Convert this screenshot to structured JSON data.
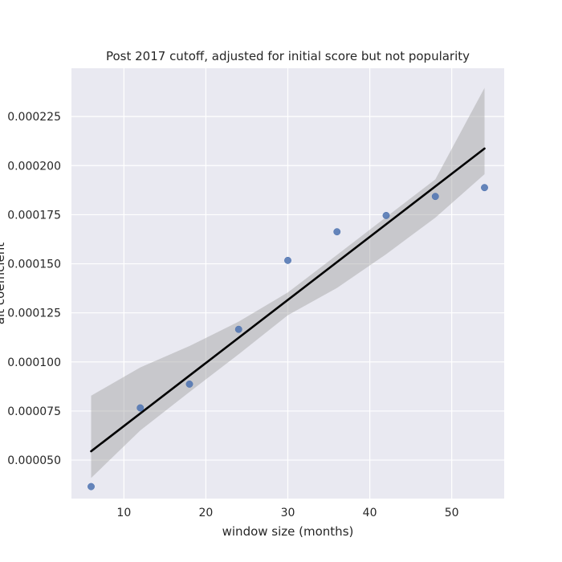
{
  "chart_data": {
    "type": "scatter",
    "title": "Post 2017 cutoff, adjusted for initial score but not popularity",
    "xlabel": "window size (months)",
    "ylabel": "alt coefficient",
    "x": [
      6,
      12,
      18,
      24,
      30,
      36,
      42,
      48,
      54
    ],
    "y": [
      3.65e-05,
      7.66e-05,
      8.87e-05,
      0.0001166,
      0.0001517,
      0.0001663,
      0.0001746,
      0.0001843,
      0.0001888
    ],
    "xlim": [
      3.6,
      56.4
    ],
    "ylim": [
      3.04e-05,
      0.0002496
    ],
    "xticks": [
      10,
      20,
      30,
      40,
      50
    ],
    "xtick_labels": [
      "10",
      "20",
      "30",
      "40",
      "50"
    ],
    "yticks": [
      5e-05,
      7.5e-05,
      0.0001,
      0.000125,
      0.00015,
      0.000175,
      0.0002,
      0.000225
    ],
    "ytick_labels": [
      "0.000050",
      "0.000075",
      "0.000100",
      "0.000125",
      "0.000150",
      "0.000175",
      "0.000200",
      "0.000225"
    ],
    "regression_line": {
      "x": [
        6,
        54
      ],
      "y": [
        5.45e-05,
        0.0002087
      ]
    },
    "confidence_band": {
      "x": [
        6,
        12,
        18,
        24,
        30,
        36,
        42,
        48,
        54
      ],
      "upper": [
        8.28e-05,
        9.72e-05,
        0.0001081,
        0.0001205,
        0.0001354,
        0.0001545,
        0.0001738,
        0.000193,
        0.0002396
      ],
      "lower": [
        4.09e-05,
        6.51e-05,
        8.47e-05,
        0.0001039,
        0.0001238,
        0.0001377,
        0.0001549,
        0.0001735,
        0.0001956
      ]
    },
    "grid": true,
    "style": {
      "background": "#e9e9f1",
      "grid_color": "#ffffff",
      "point_color": "#4c72b0",
      "line_color": "#000000",
      "band_color": "#a0a0a0"
    }
  }
}
